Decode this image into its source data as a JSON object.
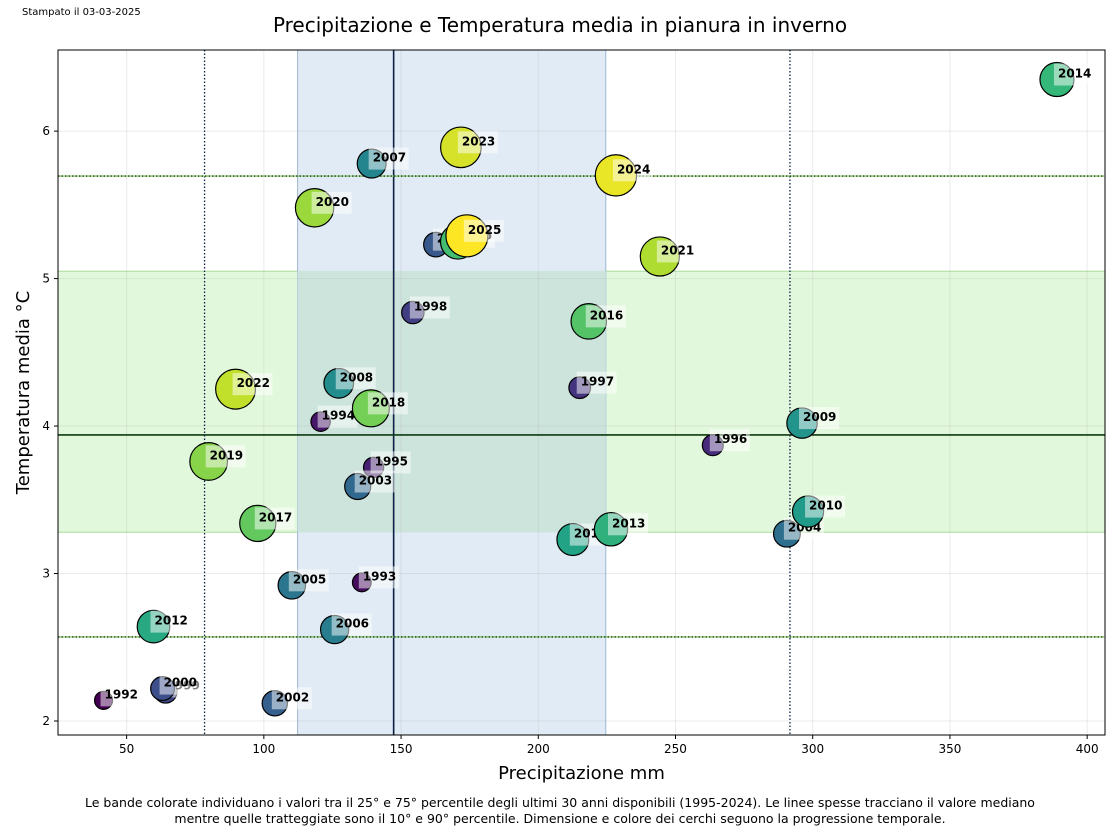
{
  "printed_date": "Stampato il 03-03-2025",
  "caption_line1": "Le bande colorate individuano i valori tra il 25° e 75° percentile degli ultimi 30 anni disponibili (1995-2024). Le linee spesse tracciano il valore mediano",
  "caption_line2": "mentre quelle tratteggiate sono il 10° e 90° percentile. Dimensione e colore dei cerchi seguono la progressione temporale.",
  "chart_data": {
    "type": "scatter",
    "title": "Precipitazione e Temperatura media in pianura in inverno",
    "xlabel": "Precipitazione mm",
    "ylabel": "Temperatura media °C",
    "xlim": [
      25,
      406.5
    ],
    "ylim": [
      1.905,
      6.55
    ],
    "xticks": [
      50,
      100,
      150,
      200,
      250,
      300,
      350,
      400
    ],
    "yticks": [
      2,
      3,
      4,
      5,
      6
    ],
    "grid": true,
    "colormap": "viridis",
    "size_and_color_encode": "year",
    "reference": {
      "period": "1995-2024",
      "precip_p10": 78.4,
      "precip_p25": 112.3,
      "precip_median": 147.3,
      "precip_p75": 224.6,
      "precip_p90": 291.7,
      "temp_p10": 2.57,
      "temp_p25": 3.28,
      "temp_median": 3.94,
      "temp_p75": 5.05,
      "temp_p90": 5.695
    },
    "colors": {
      "precip_band": "#dce7f3",
      "temp_band": "#e2f8dc",
      "overlap_band": "#cde4dc",
      "precip_lines": "#0b1f44",
      "temp_lines": "#0f3a0f"
    },
    "points": [
      {
        "year": "1992",
        "precip": 41.6,
        "temp": 2.14
      },
      {
        "year": "1993",
        "precip": 135.7,
        "temp": 2.94
      },
      {
        "year": "1994",
        "precip": 120.7,
        "temp": 4.03
      },
      {
        "year": "1995",
        "precip": 140.0,
        "temp": 3.72
      },
      {
        "year": "1996",
        "precip": 263.6,
        "temp": 3.87
      },
      {
        "year": "1997",
        "precip": 215.1,
        "temp": 4.26
      },
      {
        "year": "1998",
        "precip": 154.3,
        "temp": 4.77
      },
      {
        "year": "1999",
        "precip": 64.2,
        "temp": 2.2
      },
      {
        "year": "2000",
        "precip": 63.1,
        "temp": 2.22
      },
      {
        "year": "2001",
        "precip": 162.7,
        "temp": 5.23
      },
      {
        "year": "2002",
        "precip": 104.0,
        "temp": 2.12
      },
      {
        "year": "2003",
        "precip": 134.2,
        "temp": 3.59
      },
      {
        "year": "2004",
        "precip": 290.6,
        "temp": 3.27
      },
      {
        "year": "2005",
        "precip": 110.2,
        "temp": 2.92
      },
      {
        "year": "2006",
        "precip": 125.8,
        "temp": 2.62
      },
      {
        "year": "2007",
        "precip": 139.3,
        "temp": 5.78
      },
      {
        "year": "2008",
        "precip": 127.3,
        "temp": 4.29
      },
      {
        "year": "2009",
        "precip": 296.1,
        "temp": 4.02
      },
      {
        "year": "2010",
        "precip": 298.3,
        "temp": 3.42
      },
      {
        "year": "2011",
        "precip": 212.6,
        "temp": 3.23
      },
      {
        "year": "2012",
        "precip": 59.8,
        "temp": 2.64
      },
      {
        "year": "2013",
        "precip": 226.5,
        "temp": 3.3
      },
      {
        "year": "2014",
        "precip": 389.0,
        "temp": 6.35
      },
      {
        "year": "2015",
        "precip": 170.7,
        "temp": 5.25
      },
      {
        "year": "2016",
        "precip": 218.4,
        "temp": 4.71
      },
      {
        "year": "2017",
        "precip": 97.8,
        "temp": 3.34
      },
      {
        "year": "2018",
        "precip": 139.0,
        "temp": 4.12
      },
      {
        "year": "2019",
        "precip": 79.9,
        "temp": 3.76
      },
      {
        "year": "2020",
        "precip": 118.5,
        "temp": 5.48
      },
      {
        "year": "2021",
        "precip": 244.3,
        "temp": 5.15
      },
      {
        "year": "2022",
        "precip": 89.7,
        "temp": 4.25
      },
      {
        "year": "2023",
        "precip": 171.8,
        "temp": 5.89
      },
      {
        "year": "2024",
        "precip": 228.3,
        "temp": 5.7
      },
      {
        "year": "2025",
        "precip": 174.0,
        "temp": 5.29
      }
    ]
  }
}
